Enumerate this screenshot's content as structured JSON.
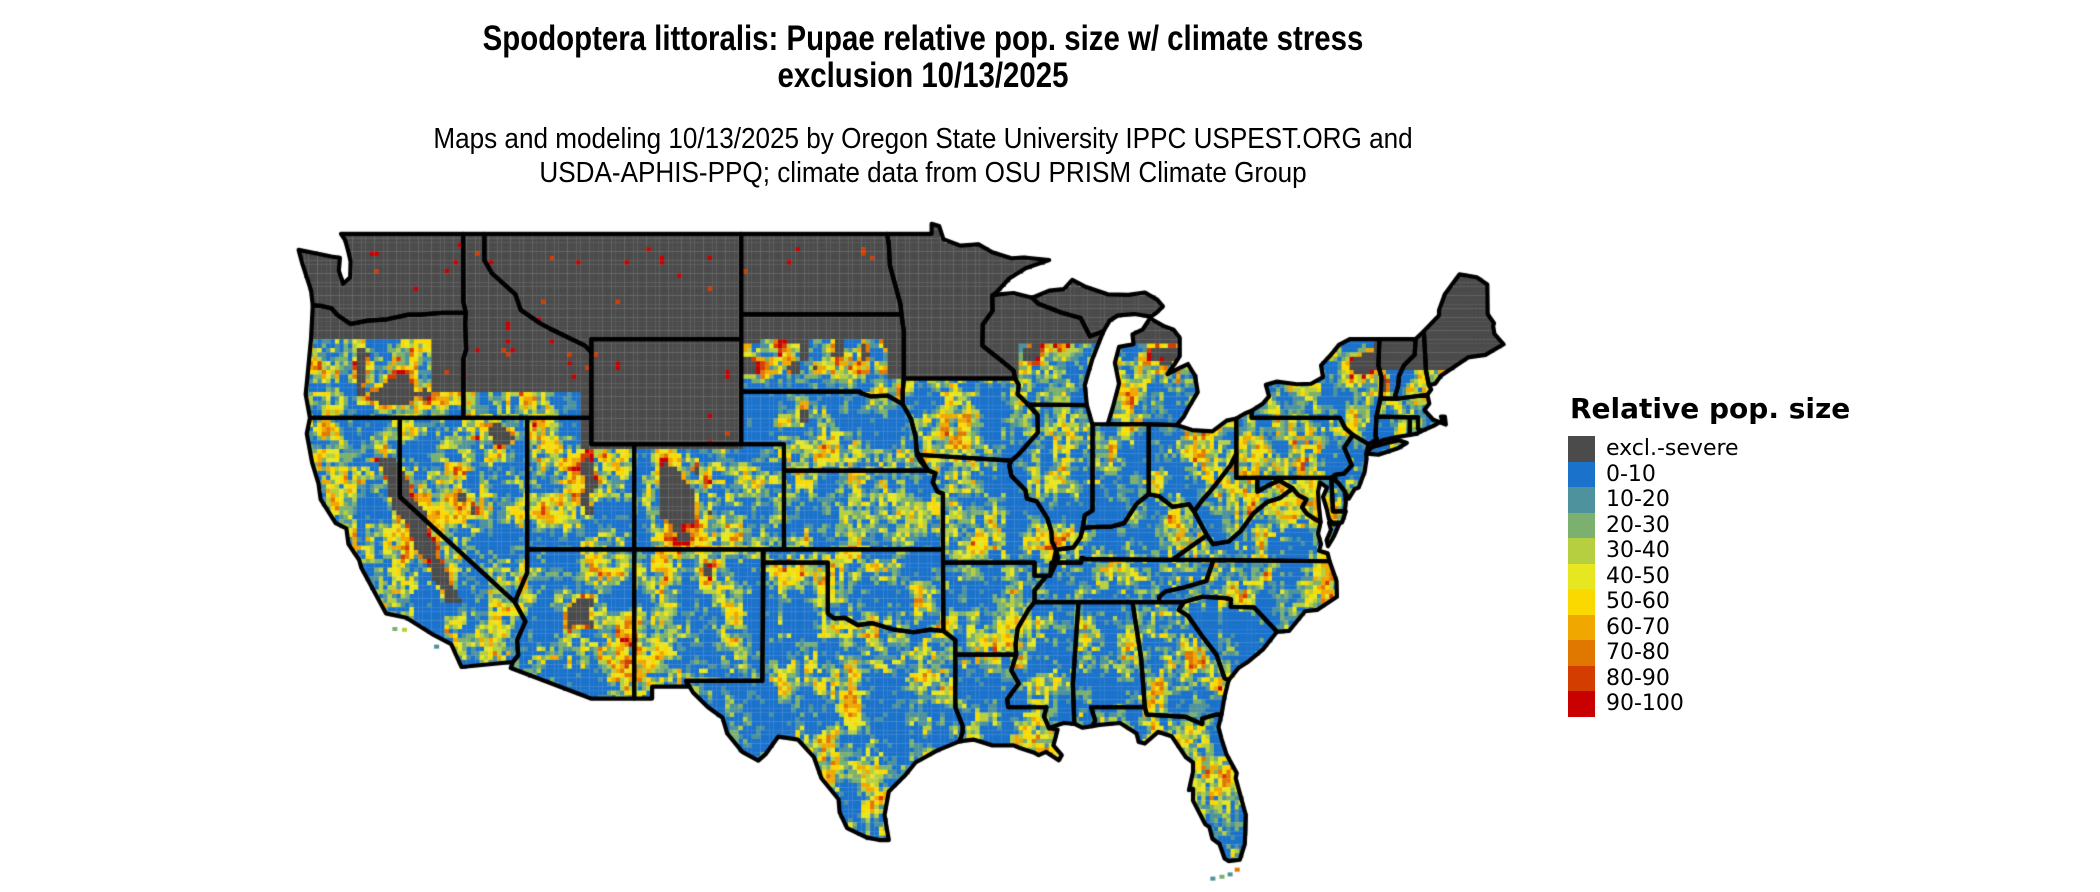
{
  "figure": {
    "title_line1": "Spodoptera littoralis: Pupae relative pop. size w/ climate stress",
    "title_line2": "exclusion 10/13/2025",
    "subtitle_line1": "Maps and modeling 10/13/2025 by Oregon State University IPPC USPEST.ORG and",
    "subtitle_line2": "USDA-APHIS-PPQ; climate data from OSU PRISM Climate Group"
  },
  "legend": {
    "title": "Relative pop. size",
    "entries": [
      {
        "label": "excl.-severe",
        "color": "#4b4b4b"
      },
      {
        "label": "0-10",
        "color": "#1b72cb"
      },
      {
        "label": "10-20",
        "color": "#4d929d"
      },
      {
        "label": "20-30",
        "color": "#7bb06e"
      },
      {
        "label": "30-40",
        "color": "#b5cf40"
      },
      {
        "label": "40-50",
        "color": "#e6e621"
      },
      {
        "label": "50-60",
        "color": "#fad900"
      },
      {
        "label": "60-70",
        "color": "#f0a800"
      },
      {
        "label": "70-80",
        "color": "#e07800"
      },
      {
        "label": "80-90",
        "color": "#d43d00"
      },
      {
        "label": "90-100",
        "color": "#c80000"
      }
    ]
  },
  "map": {
    "border_color": "#000000",
    "water_color": "#ffffff"
  }
}
